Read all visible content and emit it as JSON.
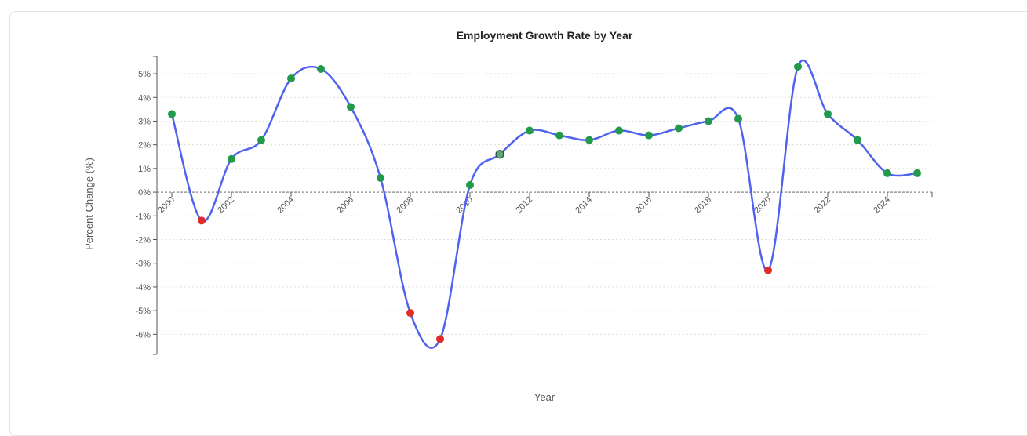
{
  "chart_data": {
    "type": "line",
    "title": "Employment Growth Rate by Year",
    "xlabel": "Year",
    "ylabel": "Percent Change (%)",
    "x": [
      2000,
      2001,
      2002,
      2003,
      2004,
      2005,
      2006,
      2007,
      2008,
      2009,
      2010,
      2011,
      2012,
      2013,
      2014,
      2015,
      2016,
      2017,
      2018,
      2019,
      2020,
      2021,
      2022,
      2023,
      2024,
      2025
    ],
    "values": [
      3.3,
      -1.2,
      1.4,
      2.2,
      4.8,
      5.2,
      3.6,
      0.6,
      -5.1,
      -6.2,
      0.3,
      1.6,
      2.6,
      2.4,
      2.2,
      2.6,
      2.4,
      2.7,
      3.0,
      3.1,
      -3.3,
      5.3,
      3.3,
      2.2,
      0.8,
      0.8
    ],
    "xticks": [
      "2000",
      "2002",
      "2004",
      "2006",
      "2008",
      "2010",
      "2012",
      "2014",
      "2016",
      "2018",
      "2020",
      "2022",
      "2024"
    ],
    "yticks": [
      "5%",
      "4%",
      "3%",
      "2%",
      "1%",
      "0%",
      "-1%",
      "-2%",
      "-3%",
      "-4%",
      "-5%",
      "-6%"
    ],
    "ylim": [
      -6.85,
      5.73
    ],
    "xlim": [
      1999.5,
      2025.5
    ],
    "grid": "horizontal dotted",
    "line_color": "#4f63ee",
    "positive_color": "#23994b",
    "negative_color": "#e02b2b",
    "highlighted_point": 2011
  }
}
